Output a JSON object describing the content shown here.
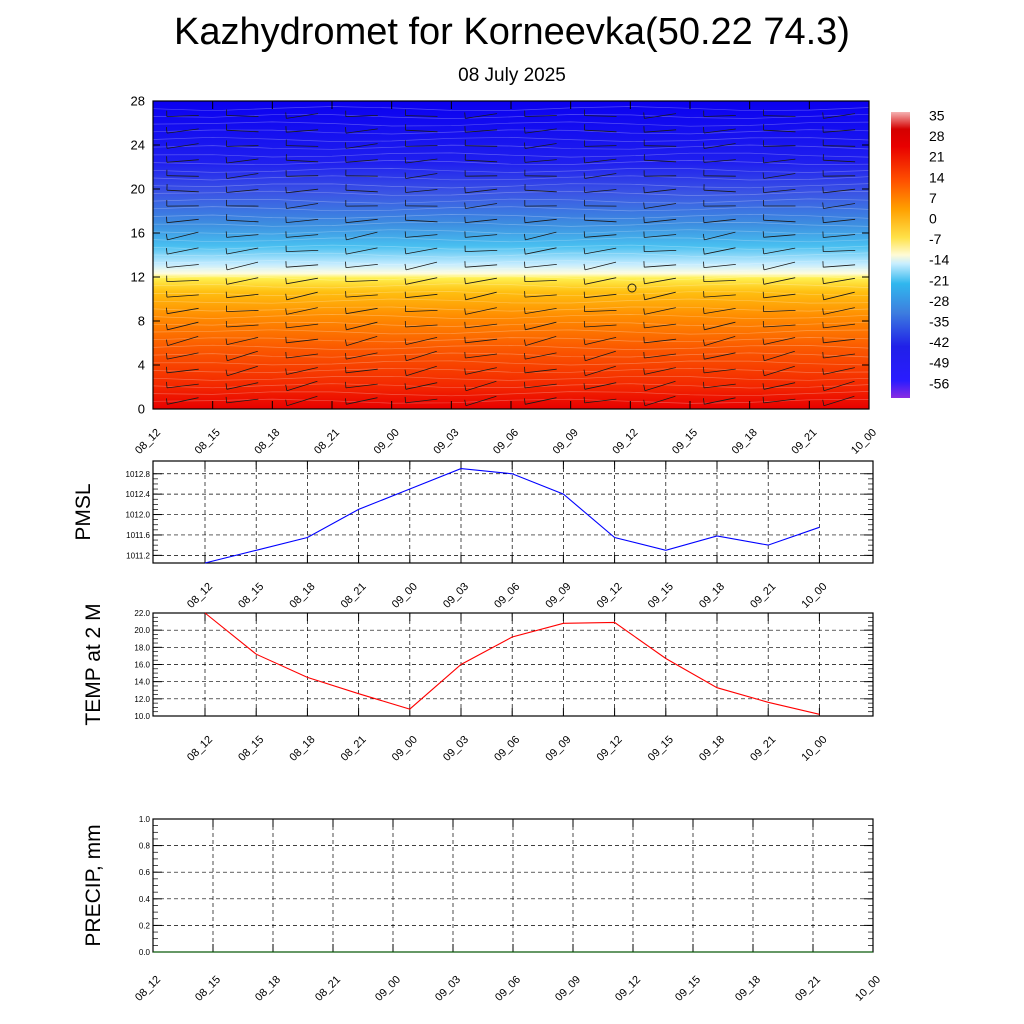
{
  "title": "Kazhydromet for Korneevka(50.22 74.3)",
  "subtitle": "08 July 2025",
  "chart_data": [
    {
      "type": "heatmap",
      "description_of_content": "temperature cross-section with wind barbs",
      "x_ticks": [
        "08_12",
        "08_15",
        "08_18",
        "08_21",
        "09_00",
        "09_03",
        "09_06",
        "09_09",
        "09_12",
        "09_15",
        "09_18",
        "09_21",
        "10_00"
      ],
      "y_ticks": [
        "0",
        "4",
        "8",
        "12",
        "16",
        "20",
        "24",
        "28"
      ],
      "ylim": [
        0,
        28
      ],
      "colorbar_labels": [
        "35",
        "28",
        "21",
        "14",
        "7",
        "0",
        "-7",
        "-14",
        "-21",
        "-28",
        "-35",
        "-42",
        "-49",
        "-56"
      ],
      "colorbar_range": [
        -63,
        42
      ]
    },
    {
      "type": "line",
      "ylabel": "PMSL",
      "x": [
        "08_12",
        "08_15",
        "08_18",
        "08_21",
        "09_00",
        "09_03",
        "09_06",
        "09_09",
        "09_12",
        "09_15",
        "09_18",
        "09_21",
        "10_00"
      ],
      "y_ticks": [
        "1011.2",
        "1011.6",
        "1012.0",
        "1012.4",
        "1012.8"
      ],
      "ylim": [
        1011.05,
        1013.05
      ],
      "series": [
        {
          "values": [
            1011.05,
            1011.3,
            1011.55,
            1012.1,
            1012.5,
            1012.9,
            1012.8,
            1012.4,
            1011.55,
            1011.3,
            1011.58,
            1011.4,
            1011.75
          ],
          "color": "#0000ff"
        }
      ],
      "grid": true
    },
    {
      "type": "line",
      "ylabel": "TEMP at 2 M",
      "x": [
        "08_12",
        "08_15",
        "08_18",
        "08_21",
        "09_00",
        "09_03",
        "09_06",
        "09_09",
        "09_12",
        "09_15",
        "09_18",
        "09_21",
        "10_00"
      ],
      "y_ticks": [
        "10.0",
        "12.0",
        "14.0",
        "16.0",
        "18.0",
        "20.0",
        "22.0"
      ],
      "ylim": [
        10.0,
        22.0
      ],
      "series": [
        {
          "values": [
            22.0,
            17.2,
            14.5,
            12.6,
            10.8,
            16.0,
            19.2,
            20.8,
            20.9,
            16.7,
            13.3,
            11.6,
            10.2
          ],
          "color": "#ff0000"
        }
      ],
      "grid": true
    },
    {
      "type": "line",
      "ylabel": "PRECIP, mm",
      "x": [
        "08_12",
        "08_15",
        "08_18",
        "08_21",
        "09_00",
        "09_03",
        "09_06",
        "09_09",
        "09_12",
        "09_15",
        "09_18",
        "09_21",
        "10_00"
      ],
      "y_ticks": [
        "0.0",
        "0.2",
        "0.4",
        "0.6",
        "0.8",
        "1.0"
      ],
      "ylim": [
        0.0,
        1.0
      ],
      "series": [
        {
          "values": [
            0,
            0,
            0,
            0,
            0,
            0,
            0,
            0,
            0,
            0,
            0,
            0,
            0
          ],
          "color": "#006400"
        }
      ],
      "grid": true
    }
  ]
}
